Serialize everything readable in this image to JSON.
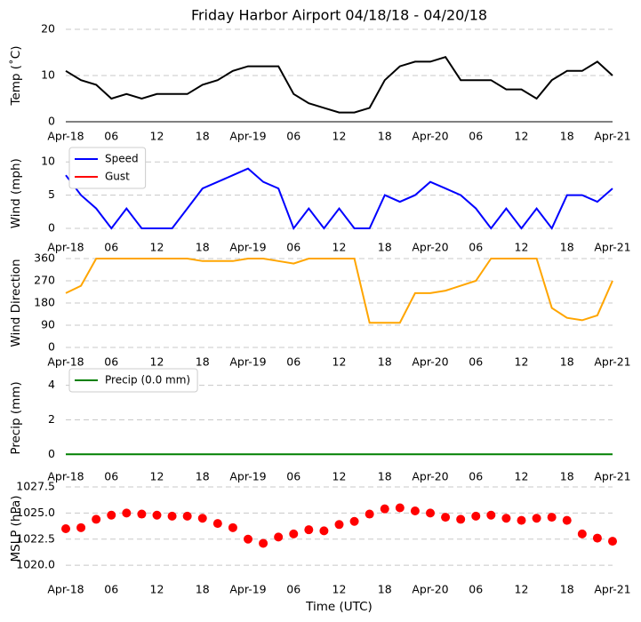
{
  "chart_data": [
    {
      "type": "line",
      "title": "Friday Harbor Airport 04/18/18 - 04/20/18",
      "y_label": "Temp (˚C)",
      "x": [
        0,
        2,
        4,
        6,
        8,
        10,
        12,
        14,
        16,
        18,
        20,
        22,
        24,
        26,
        28,
        30,
        32,
        34,
        36,
        38,
        40,
        42,
        44,
        46,
        48,
        50,
        52,
        54,
        56,
        58,
        60,
        62,
        64,
        66,
        68,
        70,
        72
      ],
      "series": [
        {
          "color": "#000000",
          "values": [
            11,
            9,
            8,
            5,
            6,
            5,
            6,
            6,
            6,
            8,
            9,
            11,
            12,
            12,
            12,
            6,
            4,
            3,
            2,
            2,
            3,
            9,
            12,
            13,
            13,
            14,
            9,
            9,
            9,
            7,
            7,
            5,
            9,
            11,
            11,
            13,
            10
          ]
        }
      ],
      "xlim": [
        0,
        72
      ],
      "xticks": [
        {
          "value": 0,
          "label": "Apr-18"
        },
        {
          "value": 6,
          "label": "06"
        },
        12,
        18,
        {
          "value": 24,
          "label": "Apr-19"
        },
        {
          "value": 30,
          "label": "06"
        },
        {
          "value": 36,
          "label": "12"
        },
        {
          "value": 42,
          "label": "18"
        },
        {
          "value": 48,
          "label": "Apr-20"
        },
        {
          "value": 54,
          "label": "06"
        },
        {
          "value": 60,
          "label": "12"
        },
        {
          "value": 66,
          "label": "18"
        },
        {
          "value": 72,
          "label": "Apr-21"
        }
      ],
      "ylim": [
        0,
        20
      ],
      "yticks": [
        0,
        10,
        20
      ],
      "grid": true
    },
    {
      "type": "line",
      "y_label": "Wind (mph)",
      "legend": "upper left",
      "x": [
        0,
        2,
        4,
        6,
        8,
        10,
        12,
        14,
        16,
        18,
        20,
        22,
        24,
        26,
        28,
        30,
        32,
        34,
        36,
        38,
        40,
        42,
        44,
        46,
        48,
        50,
        52,
        54,
        56,
        58,
        60,
        62,
        64,
        66,
        68,
        70,
        72
      ],
      "series": [
        {
          "name": "Speed",
          "color": "#0000ff",
          "values": [
            8,
            5,
            3,
            0,
            3,
            0,
            0,
            0,
            3,
            6,
            7,
            8,
            9,
            7,
            6,
            0,
            3,
            0,
            3,
            0,
            0,
            5,
            4,
            5,
            7,
            6,
            5,
            3,
            0,
            3,
            0,
            3,
            0,
            5,
            5,
            4,
            6
          ]
        },
        {
          "name": "Gust",
          "color": "#ff0000",
          "values": [
            null,
            null,
            null,
            null,
            null,
            null,
            null,
            null,
            null,
            null,
            null,
            null,
            null,
            null,
            null,
            null,
            null,
            null,
            null,
            null,
            null,
            null,
            null,
            null,
            null,
            null,
            null,
            null,
            null,
            null,
            null,
            null,
            null,
            null,
            null,
            null,
            null
          ]
        }
      ],
      "xlim": [
        0,
        72
      ],
      "xticks": [
        {
          "value": 0,
          "label": "Apr-18"
        },
        {
          "value": 6,
          "label": "06"
        },
        12,
        18,
        {
          "value": 24,
          "label": "Apr-19"
        },
        {
          "value": 30,
          "label": "06"
        },
        {
          "value": 36,
          "label": "12"
        },
        {
          "value": 42,
          "label": "18"
        },
        {
          "value": 48,
          "label": "Apr-20"
        },
        {
          "value": 54,
          "label": "06"
        },
        {
          "value": 60,
          "label": "12"
        },
        {
          "value": 66,
          "label": "18"
        },
        {
          "value": 72,
          "label": "Apr-21"
        }
      ],
      "ylim": [
        -1,
        11.5
      ],
      "yticks": [
        0,
        5,
        10
      ],
      "grid": true
    },
    {
      "type": "line",
      "y_label": "Wind Direction",
      "x": [
        0,
        2,
        4,
        6,
        8,
        10,
        12,
        14,
        16,
        18,
        20,
        22,
        24,
        26,
        28,
        30,
        32,
        34,
        36,
        38,
        40,
        42,
        44,
        46,
        48,
        50,
        52,
        54,
        56,
        58,
        60,
        62,
        64,
        66,
        68,
        70,
        72
      ],
      "series": [
        {
          "color": "#ffa500",
          "values": [
            220,
            250,
            360,
            360,
            360,
            360,
            360,
            360,
            360,
            350,
            350,
            350,
            360,
            360,
            350,
            340,
            360,
            360,
            360,
            360,
            100,
            100,
            100,
            220,
            220,
            230,
            250,
            270,
            360,
            360,
            360,
            360,
            160,
            120,
            110,
            130,
            270
          ]
        }
      ],
      "xlim": [
        0,
        72
      ],
      "xticks": [
        {
          "value": 0,
          "label": "Apr-18"
        },
        {
          "value": 6,
          "label": "06"
        },
        12,
        18,
        {
          "value": 24,
          "label": "Apr-19"
        },
        {
          "value": 30,
          "label": "06"
        },
        {
          "value": 36,
          "label": "12"
        },
        {
          "value": 42,
          "label": "18"
        },
        {
          "value": 48,
          "label": "Apr-20"
        },
        {
          "value": 54,
          "label": "06"
        },
        {
          "value": 60,
          "label": "12"
        },
        {
          "value": 66,
          "label": "18"
        },
        {
          "value": 72,
          "label": "Apr-21"
        }
      ],
      "ylim": [
        0,
        360
      ],
      "yticks": [
        0,
        90,
        180,
        270,
        360
      ],
      "grid": true
    },
    {
      "type": "line",
      "y_label": "Precip (mm)",
      "legend": "upper left",
      "x": [
        0,
        2,
        4,
        6,
        8,
        10,
        12,
        14,
        16,
        18,
        20,
        22,
        24,
        26,
        28,
        30,
        32,
        34,
        36,
        38,
        40,
        42,
        44,
        46,
        48,
        50,
        52,
        54,
        56,
        58,
        60,
        62,
        64,
        66,
        68,
        70,
        72
      ],
      "series": [
        {
          "name": "Precip (0.0 mm)",
          "color": "#008000",
          "values": [
            0,
            0,
            0,
            0,
            0,
            0,
            0,
            0,
            0,
            0,
            0,
            0,
            0,
            0,
            0,
            0,
            0,
            0,
            0,
            0,
            0,
            0,
            0,
            0,
            0,
            0,
            0,
            0,
            0,
            0,
            0,
            0,
            0,
            0,
            0,
            0,
            0
          ]
        }
      ],
      "xlim": [
        0,
        72
      ],
      "xticks": [
        {
          "value": 0,
          "label": "Apr-18"
        },
        {
          "value": 6,
          "label": "06"
        },
        12,
        18,
        {
          "value": 24,
          "label": "Apr-19"
        },
        {
          "value": 30,
          "label": "06"
        },
        {
          "value": 36,
          "label": "12"
        },
        {
          "value": 42,
          "label": "18"
        },
        {
          "value": 48,
          "label": "Apr-20"
        },
        {
          "value": 54,
          "label": "06"
        },
        {
          "value": 60,
          "label": "12"
        },
        {
          "value": 66,
          "label": "18"
        },
        {
          "value": 72,
          "label": "Apr-21"
        }
      ],
      "ylim": [
        -0.5,
        4.7
      ],
      "yticks": [
        0,
        2,
        4
      ],
      "grid": true
    },
    {
      "type": "scatter",
      "y_label": "MSLP (hPa)",
      "x_label": "Time (UTC)",
      "x": [
        0,
        2,
        4,
        6,
        8,
        10,
        12,
        14,
        16,
        18,
        20,
        22,
        24,
        26,
        28,
        30,
        32,
        34,
        36,
        38,
        40,
        42,
        44,
        46,
        48,
        50,
        52,
        54,
        56,
        58,
        60,
        62,
        64,
        66,
        68,
        70,
        72
      ],
      "series": [
        {
          "color": "#ff0000",
          "values": [
            1023.5,
            1023.6,
            1024.4,
            1024.8,
            1025.0,
            1024.9,
            1024.8,
            1024.7,
            1024.7,
            1024.5,
            1024.0,
            1023.6,
            1022.5,
            1022.1,
            1022.7,
            1023.0,
            1023.4,
            1023.3,
            1023.9,
            1024.2,
            1024.9,
            1025.4,
            1025.5,
            1025.2,
            1025.0,
            1024.6,
            1024.4,
            1024.7,
            1024.8,
            1024.5,
            1024.3,
            1024.5,
            1024.6,
            1024.3,
            1023.0,
            1022.6,
            1022.3
          ]
        }
      ],
      "xlim": [
        0,
        72
      ],
      "xticks": [
        {
          "value": 0,
          "label": "Apr-18"
        },
        {
          "value": 6,
          "label": "06"
        },
        12,
        18,
        {
          "value": 24,
          "label": "Apr-19"
        },
        {
          "value": 30,
          "label": "06"
        },
        {
          "value": 36,
          "label": "12"
        },
        {
          "value": 42,
          "label": "18"
        },
        {
          "value": 48,
          "label": "Apr-20"
        },
        {
          "value": 54,
          "label": "06"
        },
        {
          "value": 60,
          "label": "12"
        },
        {
          "value": 66,
          "label": "18"
        },
        {
          "value": 72,
          "label": "Apr-21"
        }
      ],
      "ylim": [
        1019.5,
        1027.5
      ],
      "yticks": [
        {
          "value": 1020,
          "label": "1020.0"
        },
        {
          "value": 1022.5,
          "label": "1022.5"
        },
        {
          "value": 1025,
          "label": "1025.0"
        },
        {
          "value": 1027.5,
          "label": "1027.5"
        }
      ],
      "grid": true
    }
  ]
}
